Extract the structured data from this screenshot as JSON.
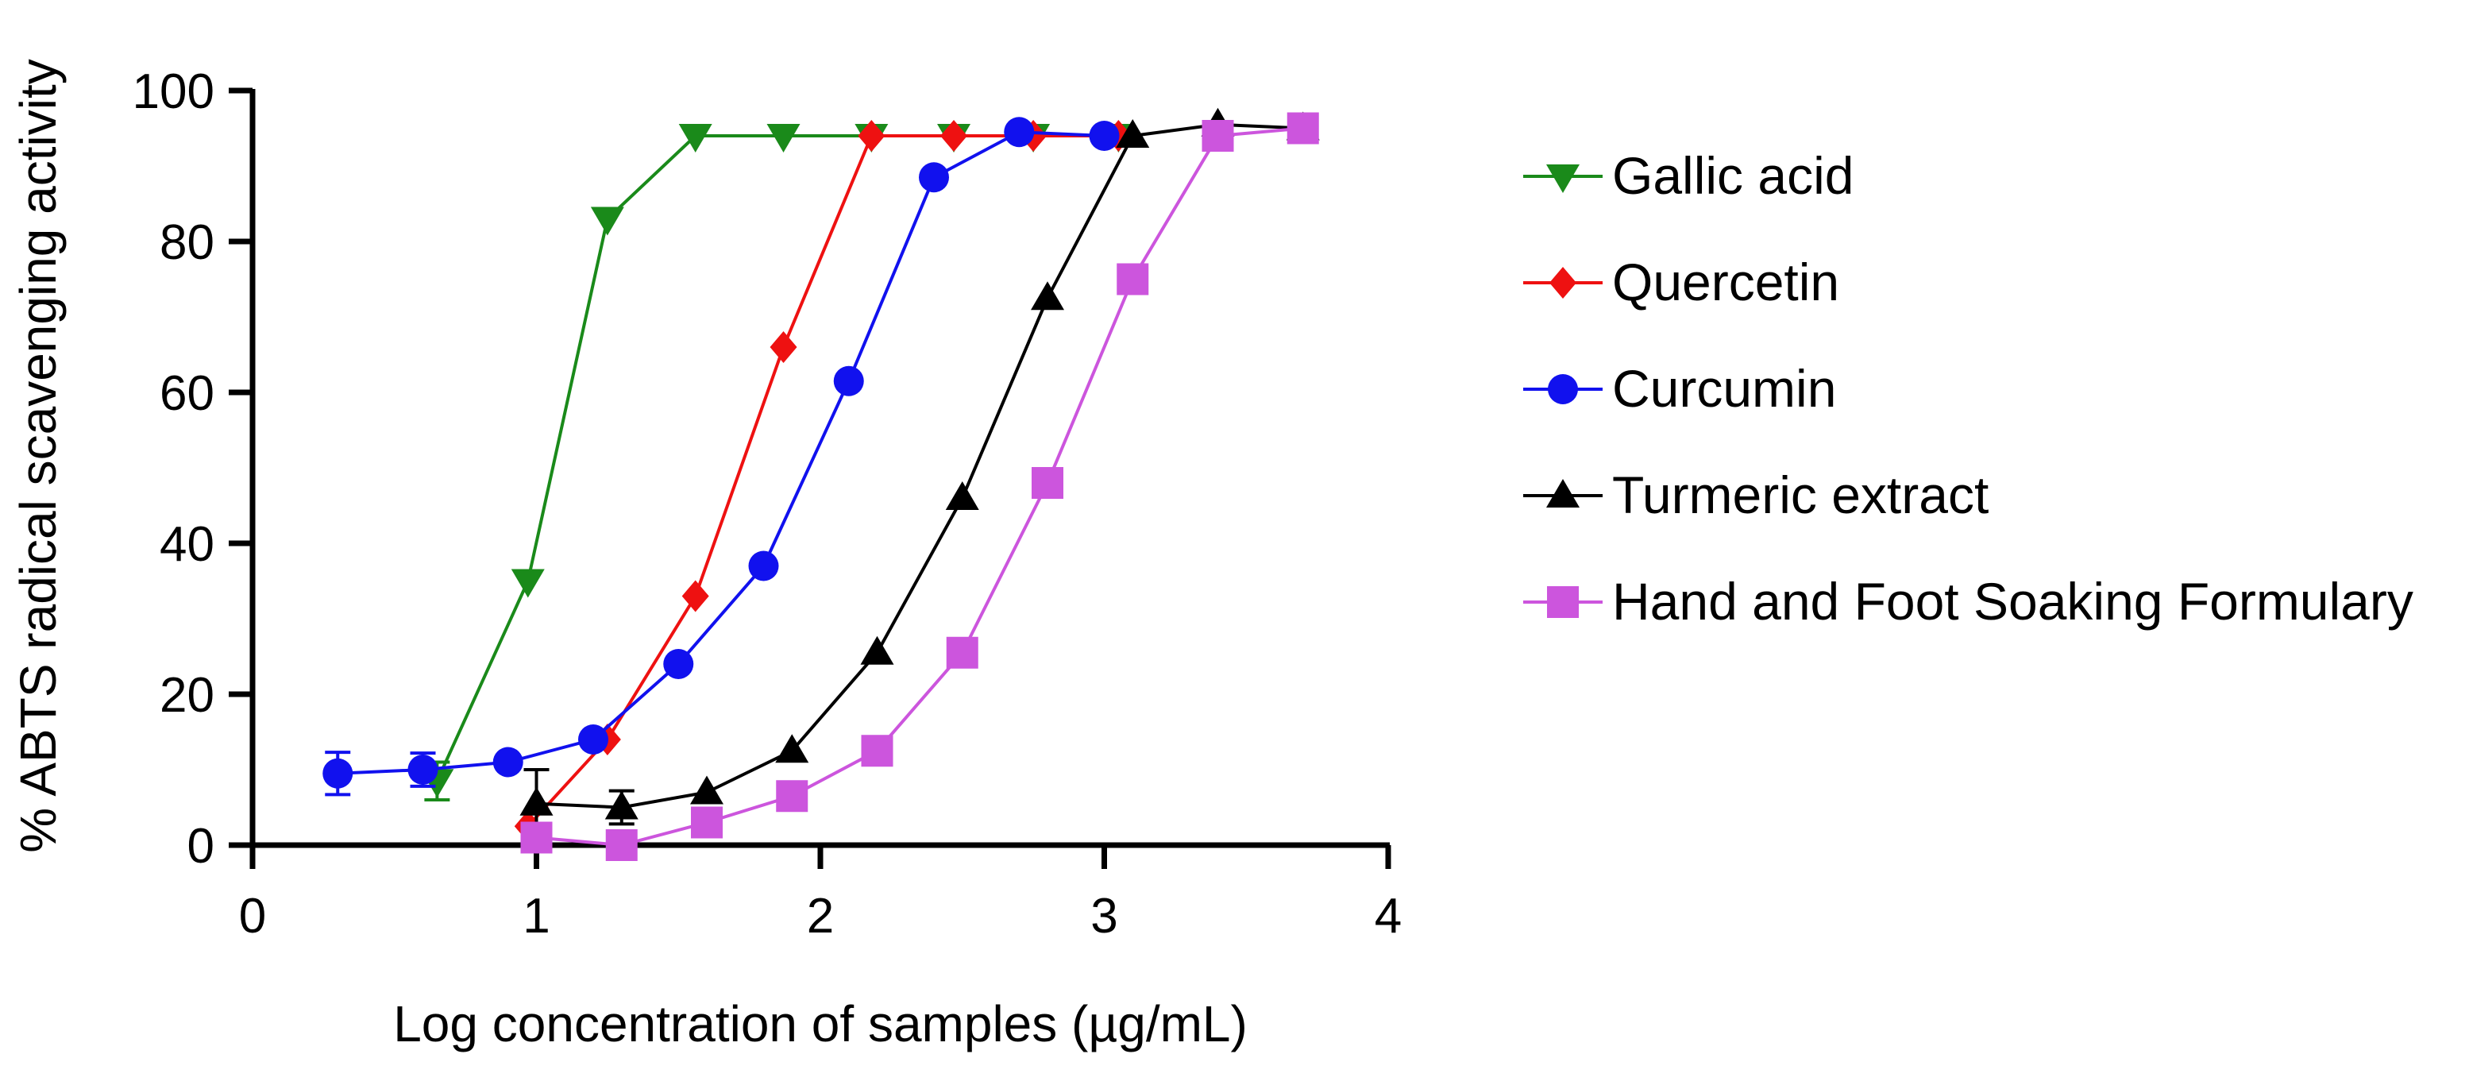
{
  "chart_data": {
    "type": "line",
    "title": "",
    "xlabel": "Log concentration of samples (µg/mL)",
    "ylabel": "% ABTS radical scavenging activity",
    "xlim": [
      0,
      4
    ],
    "ylim": [
      0,
      100
    ],
    "xticks": [
      0,
      1,
      2,
      3,
      4
    ],
    "yticks": [
      0,
      20,
      40,
      60,
      80,
      100
    ],
    "grid": false,
    "legend_position": "right",
    "series": [
      {
        "name": "Gallic acid",
        "color": "#1a8a1a",
        "marker": "triangle-down",
        "x": [
          0.65,
          0.97,
          1.25,
          1.56,
          1.87,
          2.18,
          2.47,
          2.75,
          3.05
        ],
        "y": [
          8.5,
          35,
          83,
          94,
          94,
          94,
          94,
          94,
          94
        ],
        "yerr": [
          2.5,
          0,
          0,
          0,
          0,
          0,
          0,
          0,
          0
        ]
      },
      {
        "name": "Quercetin",
        "color": "#ee1111",
        "marker": "diamond",
        "x": [
          0.97,
          1.25,
          1.56,
          1.87,
          2.18,
          2.47,
          2.75,
          3.05
        ],
        "y": [
          2.5,
          14,
          33,
          66,
          94,
          94,
          94,
          94
        ],
        "yerr": [
          0,
          0,
          0,
          0,
          0,
          0,
          0,
          0
        ]
      },
      {
        "name": "Curcumin",
        "color": "#1111ee",
        "marker": "circle",
        "x": [
          0.3,
          0.6,
          0.9,
          1.2,
          1.5,
          1.8,
          2.1,
          2.4,
          2.7,
          3.0
        ],
        "y": [
          9.5,
          10,
          11,
          14,
          24,
          37,
          61.5,
          88.5,
          94.5,
          94
        ],
        "yerr": [
          2.8,
          2.2,
          0,
          0,
          0,
          0,
          0,
          0,
          0,
          0
        ]
      },
      {
        "name": "Turmeric extract",
        "color": "#000000",
        "marker": "triangle-up",
        "x": [
          1.0,
          1.3,
          1.6,
          1.9,
          2.2,
          2.5,
          2.8,
          3.1,
          3.4,
          3.7
        ],
        "y": [
          5.5,
          5,
          7,
          12.5,
          25.5,
          46,
          72.5,
          94,
          95.5,
          95
        ],
        "yerr": [
          4.5,
          2.2,
          0,
          0,
          0,
          0,
          0,
          0,
          0,
          0
        ]
      },
      {
        "name": "Hand and Foot Soaking Formulary",
        "color": "#cc55dd",
        "marker": "square",
        "x": [
          1.0,
          1.3,
          1.6,
          1.9,
          2.2,
          2.5,
          2.8,
          3.1,
          3.4,
          3.7
        ],
        "y": [
          1,
          0,
          3,
          6.5,
          12.5,
          25.5,
          48,
          75,
          94,
          95
        ],
        "yerr": [
          0,
          0,
          0,
          0,
          0,
          0,
          0,
          0,
          0,
          0
        ]
      }
    ]
  }
}
